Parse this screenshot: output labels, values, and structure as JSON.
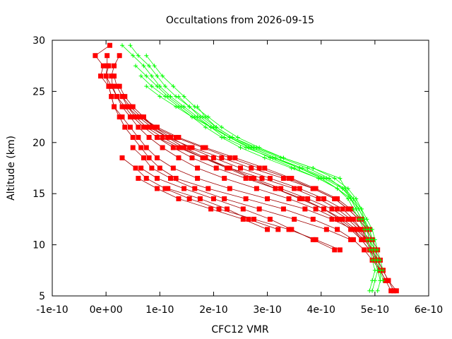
{
  "chart_data": {
    "type": "line",
    "title": "Occultations from 2026-09-15",
    "xlabel": "CFC12 VMR",
    "ylabel": "Altitude (km)",
    "xlim": [
      -1e-10,
      6e-10
    ],
    "ylim": [
      5,
      30
    ],
    "x_ticks": [
      -1e-10,
      0,
      1e-10,
      2e-10,
      3e-10,
      4e-10,
      5e-10,
      6e-10
    ],
    "x_tick_labels": [
      "-1e-10",
      "0e+00",
      "1e-10",
      "2e-10",
      "3e-10",
      "4e-10",
      "5e-10",
      "6e-10"
    ],
    "y_ticks": [
      5,
      10,
      15,
      20,
      25,
      30
    ],
    "y_tick_labels": [
      "5",
      "10",
      "15",
      "20",
      "25",
      "30"
    ],
    "grid": false,
    "legend": "none",
    "colors": {
      "red_series": "#ff0000",
      "red_lines": "#a00000",
      "green_series": "#00ff00",
      "axes": "#000000"
    },
    "series": [
      {
        "color": "red",
        "marker": "square",
        "y": [
          29.5,
          28.5,
          27.5,
          26.5,
          25.5,
          24.5,
          23.5,
          22.5,
          21.5,
          20.5,
          19.5,
          18.5,
          17.5,
          16.5,
          15.5,
          14.5,
          13.5,
          12.5,
          11.5,
          10.5,
          9.5,
          8.5,
          7.5,
          6.5,
          5.5
        ],
        "x": [
          7e-12,
          -2e-11,
          -5e-12,
          -1e-11,
          5e-12,
          1e-11,
          1.5e-11,
          3e-11,
          4.5e-11,
          6e-11,
          7.5e-11,
          9.5e-11,
          1.25e-10,
          1.7e-10,
          2.3e-10,
          3e-10,
          3.7e-10,
          4.2e-10,
          4.6e-10,
          4.8e-10,
          4.95e-10,
          5.05e-10,
          5.15e-10,
          5.25e-10,
          5.4e-10
        ]
      },
      {
        "color": "red",
        "marker": "square",
        "y": [
          28.5,
          27.5,
          26.5,
          25.5,
          24.5,
          23.5,
          22.5,
          21.5,
          20.5,
          19.5,
          18.5,
          17.5,
          16.5,
          15.5,
          14.5,
          13.5,
          12.5,
          11.5,
          10.5,
          9.5,
          8.5,
          7.5,
          6.5,
          5.5
        ],
        "x": [
          2e-12,
          2e-12,
          0.0,
          5e-12,
          1e-11,
          1.5e-11,
          2.5e-11,
          3.5e-11,
          5e-11,
          6.5e-11,
          8e-11,
          1e-10,
          1.3e-10,
          1.9e-10,
          2.6e-10,
          3.3e-10,
          3.85e-10,
          4.3e-10,
          4.6e-10,
          4.8e-10,
          4.95e-10,
          5.1e-10,
          5.2e-10,
          5.3e-10
        ]
      },
      {
        "color": "red",
        "marker": "square",
        "y": [
          28.5,
          27.5,
          26.5,
          25.5,
          24.5,
          23.5,
          22.5,
          21.5,
          20.5,
          19.5,
          18.5,
          17.5,
          16.5,
          15.5,
          14.5,
          13.5,
          12.5,
          11.5,
          10.5,
          9.5,
          8.5,
          7.5,
          6.5,
          5.5
        ],
        "x": [
          2.5e-11,
          1.5e-11,
          1e-11,
          1.2e-11,
          2e-11,
          3e-11,
          4.5e-11,
          6e-11,
          8e-11,
          1.05e-10,
          1.35e-10,
          1.7e-10,
          2.2e-10,
          2.8e-10,
          3.4e-10,
          3.9e-10,
          4.3e-10,
          4.55e-10,
          4.75e-10,
          4.9e-10,
          5.05e-10,
          5.15e-10,
          5.25e-10,
          5.35e-10
        ]
      },
      {
        "color": "red",
        "marker": "square",
        "y": [
          27.5,
          26.5,
          25.5,
          24.5,
          23.5,
          22.5,
          21.5,
          20.5,
          19.5,
          18.5,
          17.5,
          16.5,
          15.5,
          14.5,
          13.5,
          12.5,
          11.5,
          10.5,
          9.5,
          8.5,
          7.5,
          6.5
        ],
        "x": [
          5e-12,
          0.0,
          1e-11,
          2e-11,
          3.5e-11,
          5e-11,
          7e-11,
          9.5e-11,
          1.25e-10,
          1.6e-10,
          2.05e-10,
          2.6e-10,
          3.15e-10,
          3.65e-10,
          4.05e-10,
          4.35e-10,
          4.6e-10,
          4.75e-10,
          4.9e-10,
          5e-10,
          5.1e-10,
          5.2e-10
        ]
      },
      {
        "color": "red",
        "marker": "square",
        "y": [
          26.5,
          25.5,
          24.5,
          23.5,
          22.5,
          21.5,
          20.5,
          19.5,
          18.5,
          17.5,
          16.5,
          15.5,
          14.5,
          13.5,
          12.5,
          11.5,
          10.5,
          9.5,
          8.5,
          7.5
        ],
        "x": [
          1.5e-11,
          2e-11,
          3e-11,
          4e-11,
          5.5e-11,
          7.5e-11,
          1.05e-10,
          1.4e-10,
          1.8e-10,
          2.3e-10,
          2.9e-10,
          3.5e-10,
          3.95e-10,
          4.3e-10,
          4.55e-10,
          4.75e-10,
          4.85e-10,
          4.95e-10,
          5.05e-10,
          5.15e-10
        ]
      },
      {
        "color": "red",
        "marker": "square",
        "y": [
          25.5,
          24.5,
          23.5,
          22.5,
          21.5,
          20.5,
          19.5,
          18.5,
          17.5,
          16.5,
          15.5,
          14.5,
          13.5,
          12.5,
          11.5,
          10.5,
          9.5,
          8.5
        ],
        "x": [
          2.5e-11,
          3.5e-11,
          5e-11,
          7e-11,
          9e-11,
          1.2e-10,
          1.55e-10,
          2e-10,
          2.5e-10,
          3.05e-10,
          3.6e-10,
          4.05e-10,
          4.4e-10,
          4.6e-10,
          4.75e-10,
          4.9e-10,
          5e-10,
          5.1e-10
        ]
      },
      {
        "color": "red",
        "marker": "square",
        "y": [
          24.5,
          23.5,
          22.5,
          21.5,
          20.5,
          19.5,
          18.5,
          17.5,
          16.5,
          15.5,
          14.5,
          13.5,
          12.5,
          11.5,
          10.5,
          9.5
        ],
        "x": [
          3e-11,
          4.5e-11,
          6.5e-11,
          9e-11,
          1.3e-10,
          1.8e-10,
          2.3e-10,
          2.85e-10,
          3.4e-10,
          3.85e-10,
          4.25e-10,
          4.5e-10,
          4.7e-10,
          4.85e-10,
          4.95e-10,
          5.05e-10
        ]
      },
      {
        "color": "red",
        "marker": "square",
        "y": [
          23.5,
          22.5,
          21.5,
          20.5,
          19.5,
          18.5,
          17.5,
          16.5,
          15.5,
          14.5,
          13.5,
          12.5,
          11.5,
          10.5
        ],
        "x": [
          4e-11,
          6e-11,
          8.5e-11,
          1.15e-10,
          1.45e-10,
          1.85e-10,
          2.3e-10,
          2.75e-10,
          3.25e-10,
          3.75e-10,
          4.2e-10,
          4.5e-10,
          4.7e-10,
          4.85e-10
        ]
      },
      {
        "color": "red",
        "marker": "square",
        "y": [
          22.5,
          21.5,
          20.5,
          19.5,
          18.5,
          17.5,
          16.5,
          15.5,
          14.5,
          13.5,
          12.5,
          11.5
        ],
        "x": [
          6.5e-11,
          9.5e-11,
          1.35e-10,
          1.85e-10,
          2.4e-10,
          2.95e-10,
          3.45e-10,
          3.9e-10,
          4.3e-10,
          4.55e-10,
          4.75e-10,
          4.9e-10
        ]
      },
      {
        "color": "red",
        "marker": "square",
        "y": [
          21.5,
          20.5,
          19.5,
          18.5,
          17.5,
          16.5,
          15.5,
          14.5,
          13.5,
          12.5,
          11.5
        ],
        "x": [
          8e-11,
          1.15e-10,
          1.6e-10,
          2.15e-10,
          2.7e-10,
          3.3e-10,
          3.85e-10,
          4.25e-10,
          4.5e-10,
          4.7e-10,
          4.85e-10
        ]
      },
      {
        "color": "red",
        "marker": "square",
        "y": [
          20.5,
          19.5,
          18.5,
          17.5,
          16.5,
          15.5,
          14.5,
          13.5,
          12.5,
          11.5,
          10.5
        ],
        "x": [
          9.5e-11,
          1.35e-10,
          1.8e-10,
          2.25e-10,
          2.7e-10,
          3.15e-10,
          3.6e-10,
          4.05e-10,
          4.4e-10,
          4.65e-10,
          4.85e-10
        ]
      },
      {
        "color": "red",
        "marker": "square",
        "y": [
          19.5,
          18.5,
          17.5,
          16.5,
          15.5,
          14.5,
          13.5,
          12.5,
          11.5,
          10.5
        ],
        "x": [
          5e-11,
          7e-11,
          8.5e-11,
          1.2e-10,
          1.65e-10,
          2.2e-10,
          2.85e-10,
          3.5e-10,
          4.1e-10,
          4.55e-10
        ]
      },
      {
        "color": "red",
        "marker": "square",
        "y": [
          18.5,
          17.5,
          16.5,
          15.5,
          14.5,
          13.5,
          12.5,
          11.5,
          10.5,
          9.5
        ],
        "x": [
          3e-11,
          5.5e-11,
          7.5e-11,
          1.1e-10,
          1.55e-10,
          2.1e-10,
          2.75e-10,
          3.4e-10,
          3.9e-10,
          4.35e-10
        ]
      },
      {
        "color": "red",
        "marker": "square",
        "y": [
          17.5,
          16.5,
          15.5,
          14.5,
          13.5,
          12.5,
          11.5,
          10.5,
          9.5
        ],
        "x": [
          6.5e-11,
          9.5e-11,
          1.45e-10,
          2e-10,
          2.55e-10,
          3.05e-10,
          3.45e-10,
          3.85e-10,
          4.25e-10
        ]
      },
      {
        "color": "red",
        "marker": "square",
        "y": [
          16.5,
          15.5,
          14.5,
          13.5,
          12.5,
          11.5
        ],
        "x": [
          6e-11,
          9.5e-11,
          1.35e-10,
          1.95e-10,
          2.55e-10,
          3e-10
        ]
      },
      {
        "color": "red",
        "marker": "square",
        "y": [
          15.5,
          14.5,
          13.5,
          12.5,
          11.5
        ],
        "x": [
          1.15e-10,
          1.75e-10,
          2.25e-10,
          2.65e-10,
          3.2e-10
        ]
      },
      {
        "color": "green",
        "marker": "plus",
        "y": [
          29.5,
          28.5,
          27.5,
          26.5,
          25.5,
          24.5,
          23.5,
          22.5,
          21.5,
          20.5,
          19.5,
          18.5,
          17.5,
          16.5,
          15.5,
          14.5,
          13.5,
          12.5,
          11.5,
          10.5,
          9.5,
          8.5,
          7.5,
          6.5,
          5.5
        ],
        "x": [
          3e-11,
          5e-11,
          7e-11,
          8.5e-11,
          1e-10,
          1.2e-10,
          1.45e-10,
          1.7e-10,
          1.95e-10,
          2.2e-10,
          2.6e-10,
          3.1e-10,
          3.6e-10,
          4e-10,
          4.3e-10,
          4.5e-10,
          4.6e-10,
          4.7e-10,
          4.8e-10,
          4.85e-10,
          4.9e-10,
          4.95e-10,
          5e-10,
          4.95e-10,
          4.9e-10
        ]
      },
      {
        "color": "green",
        "marker": "plus",
        "y": [
          29.5,
          28.5,
          27.5,
          26.5,
          25.5,
          24.5,
          23.5,
          22.5,
          21.5,
          20.5,
          19.5,
          18.5,
          17.5,
          16.5,
          15.5,
          14.5,
          13.5,
          12.5,
          11.5,
          10.5,
          9.5,
          8.5,
          7.5,
          6.5,
          5.5
        ],
        "x": [
          4.5e-11,
          6e-11,
          8e-11,
          9.5e-11,
          1.1e-10,
          1.3e-10,
          1.55e-10,
          1.8e-10,
          2.05e-10,
          2.35e-10,
          2.75e-10,
          3.25e-10,
          3.75e-10,
          4.15e-10,
          4.4e-10,
          4.55e-10,
          4.65e-10,
          4.75e-10,
          4.85e-10,
          4.9e-10,
          4.95e-10,
          5e-10,
          5.05e-10,
          5e-10,
          4.95e-10
        ]
      },
      {
        "color": "green",
        "marker": "plus",
        "y": [
          28.5,
          27.5,
          26.5,
          25.5,
          24.5,
          23.5,
          22.5,
          21.5,
          20.5,
          19.5,
          18.5,
          17.5,
          16.5,
          15.5,
          14.5,
          13.5,
          12.5,
          11.5,
          10.5,
          9.5,
          8.5,
          7.5,
          6.5,
          5.5
        ],
        "x": [
          7.5e-11,
          9e-11,
          1.05e-10,
          1.25e-10,
          1.45e-10,
          1.65e-10,
          1.9e-10,
          2.15e-10,
          2.45e-10,
          2.85e-10,
          3.3e-10,
          3.85e-10,
          4.25e-10,
          4.5e-10,
          4.65e-10,
          4.75e-10,
          4.8e-10,
          4.85e-10,
          4.9e-10,
          4.95e-10,
          5e-10,
          5.05e-10,
          5.1e-10,
          5.05e-10
        ]
      },
      {
        "color": "green",
        "marker": "plus",
        "y": [
          27.5,
          26.5,
          25.5,
          24.5,
          23.5,
          22.5,
          21.5,
          20.5,
          19.5,
          18.5,
          17.5,
          16.5,
          15.5,
          14.5,
          13.5,
          12.5,
          11.5,
          10.5,
          9.5,
          8.5,
          7.5,
          6.5
        ],
        "x": [
          5.5e-11,
          7.5e-11,
          9.5e-11,
          1.15e-10,
          1.4e-10,
          1.65e-10,
          1.95e-10,
          2.3e-10,
          2.7e-10,
          3.15e-10,
          3.65e-10,
          4.1e-10,
          4.45e-10,
          4.6e-10,
          4.7e-10,
          4.8e-10,
          4.85e-10,
          4.9e-10,
          5e-10,
          5.05e-10,
          5.1e-10,
          5.15e-10
        ]
      },
      {
        "color": "green",
        "marker": "plus",
        "y": [
          26.5,
          25.5,
          24.5,
          23.5,
          22.5,
          21.5,
          20.5,
          19.5,
          18.5,
          17.5,
          16.5,
          15.5,
          14.5,
          13.5,
          12.5,
          11.5,
          10.5,
          9.5,
          8.5,
          7.5,
          6.5
        ],
        "x": [
          6.5e-11,
          8.5e-11,
          1.1e-10,
          1.35e-10,
          1.6e-10,
          1.85e-10,
          2.15e-10,
          2.5e-10,
          2.95e-10,
          3.45e-10,
          3.95e-10,
          4.3e-10,
          4.55e-10,
          4.7e-10,
          4.8e-10,
          4.9e-10,
          4.95e-10,
          5e-10,
          5.05e-10,
          5.1e-10,
          5.1e-10
        ]
      },
      {
        "color": "green",
        "marker": "plus",
        "y": [
          25.5,
          24.5,
          23.5,
          22.5,
          21.5,
          20.5,
          19.5,
          18.5,
          17.5,
          16.5,
          15.5,
          14.5,
          13.5,
          12.5,
          11.5,
          10.5,
          9.5,
          8.5,
          7.5
        ],
        "x": [
          7.5e-11,
          1e-10,
          1.3e-10,
          1.6e-10,
          1.95e-10,
          2.3e-10,
          2.7e-10,
          3.15e-10,
          3.6e-10,
          4.05e-10,
          4.4e-10,
          4.6e-10,
          4.75e-10,
          4.85e-10,
          4.95e-10,
          5e-10,
          5.05e-10,
          5.1e-10,
          5.15e-10
        ]
      },
      {
        "color": "green",
        "marker": "plus",
        "y": [
          24.5,
          23.5,
          22.5,
          21.5,
          20.5,
          19.5,
          18.5,
          17.5,
          16.5,
          15.5,
          14.5,
          13.5,
          12.5,
          11.5,
          10.5,
          9.5,
          8.5
        ],
        "x": [
          1.35e-10,
          1.55e-10,
          1.75e-10,
          2e-10,
          2.3e-10,
          2.65e-10,
          3.05e-10,
          3.5e-10,
          3.95e-10,
          4.3e-10,
          4.55e-10,
          4.7e-10,
          4.8e-10,
          4.9e-10,
          4.95e-10,
          5e-10,
          5.05e-10
        ]
      },
      {
        "color": "green",
        "marker": "plus",
        "y": [
          23.5,
          22.5,
          21.5,
          20.5,
          19.5,
          18.5,
          17.5,
          16.5,
          15.5,
          14.5,
          13.5,
          12.5
        ],
        "x": [
          1.7e-10,
          1.85e-10,
          2.05e-10,
          2.35e-10,
          2.8e-10,
          3.3e-10,
          3.85e-10,
          4.35e-10,
          4.45e-10,
          4.55e-10,
          4.65e-10,
          4.75e-10
        ]
      }
    ]
  }
}
